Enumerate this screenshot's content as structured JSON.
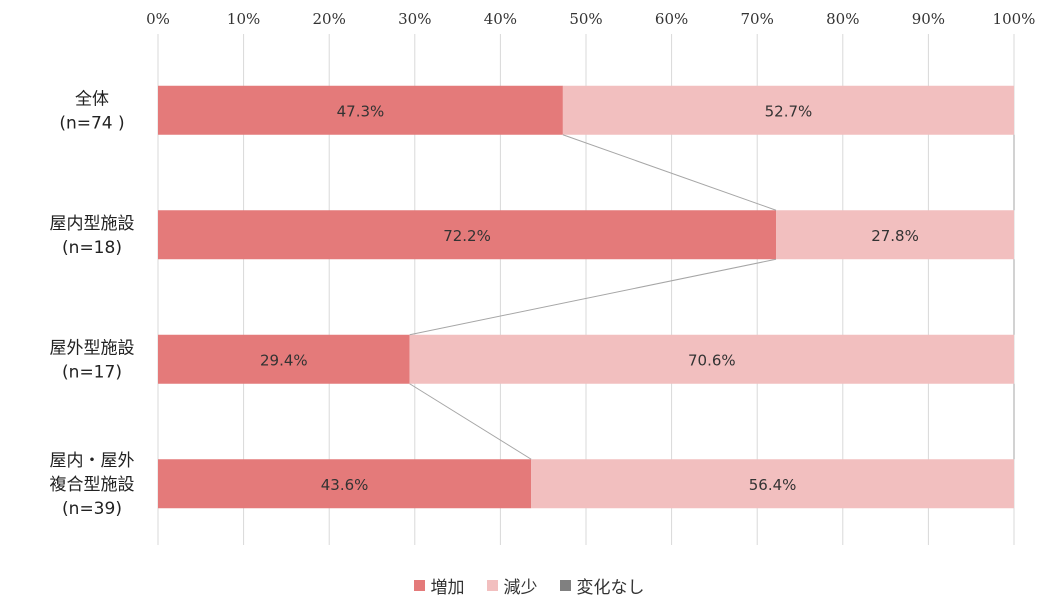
{
  "chart_data": {
    "type": "bar",
    "orientation": "horizontal",
    "stacked": true,
    "percent": true,
    "categories": [
      [
        "全体",
        "(n=74 )"
      ],
      [
        "屋内型施設",
        "(n=18)"
      ],
      [
        "屋外型施設",
        "(n=17)"
      ],
      [
        "屋内・屋外",
        "複合型施設",
        "(n=39)"
      ]
    ],
    "series": [
      {
        "name": "増加",
        "color": "#e47a7a",
        "values": [
          47.3,
          72.2,
          29.4,
          43.6
        ],
        "labels": [
          "47.3%",
          "72.2%",
          "29.4%",
          "43.6%"
        ]
      },
      {
        "name": "減少",
        "color": "#f2bfbf",
        "values": [
          52.7,
          27.8,
          70.6,
          56.4
        ],
        "labels": [
          "52.7%",
          "27.8%",
          "70.6%",
          "56.4%"
        ]
      },
      {
        "name": "変化なし",
        "color": "#808080",
        "values": [
          0,
          0,
          0,
          0
        ],
        "labels": []
      }
    ],
    "xlim": [
      0,
      100
    ],
    "x_ticks": [
      "0%",
      "10%",
      "20%",
      "30%",
      "40%",
      "50%",
      "60%",
      "70%",
      "80%",
      "90%",
      "100%"
    ],
    "x_axis_position": "top",
    "grid": true,
    "series_lines": true,
    "legend_position": "bottom"
  }
}
